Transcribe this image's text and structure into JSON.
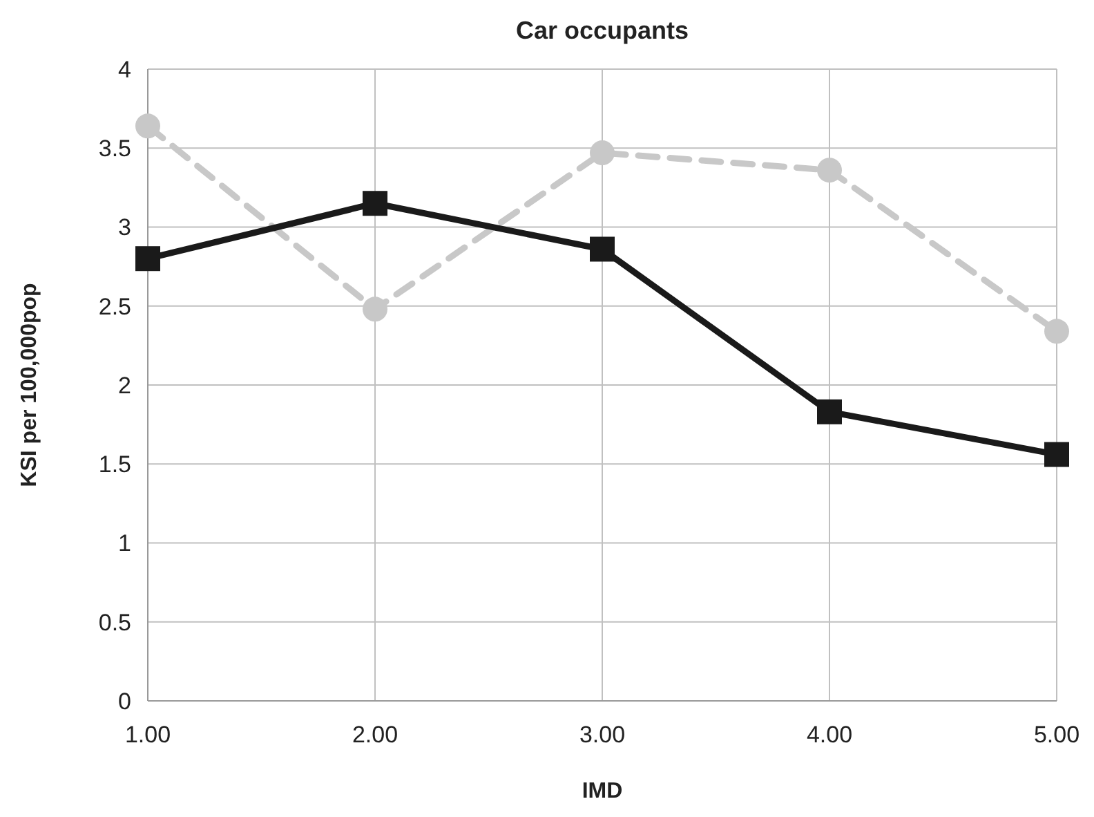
{
  "chart_data": {
    "type": "line",
    "title": "Car occupants",
    "xlabel": "IMD",
    "ylabel": "KSI per 100,000pop",
    "x": [
      1,
      2,
      3,
      4,
      5
    ],
    "series": [
      {
        "color": "#c8c8c8",
        "values": [
          3.64,
          2.48,
          3.47,
          3.36,
          2.34
        ],
        "marker": "circle",
        "line_style": "dashed"
      },
      {
        "color": "#1a1a1a",
        "values": [
          2.8,
          3.15,
          2.86,
          1.83,
          1.56
        ],
        "marker": "square",
        "line_style": "solid"
      }
    ],
    "xlim": [
      1,
      5
    ],
    "xticks": [
      {
        "value": 1,
        "label": "1.00"
      },
      {
        "value": 2,
        "label": "2.00"
      },
      {
        "value": 3,
        "label": "3.00"
      },
      {
        "value": 4,
        "label": "4.00"
      },
      {
        "value": 5,
        "label": "5.00"
      }
    ],
    "ylim": [
      0,
      4
    ],
    "yticks": [
      0,
      0.5,
      1,
      1.5,
      2,
      2.5,
      3,
      3.5,
      4
    ],
    "grid": true
  }
}
